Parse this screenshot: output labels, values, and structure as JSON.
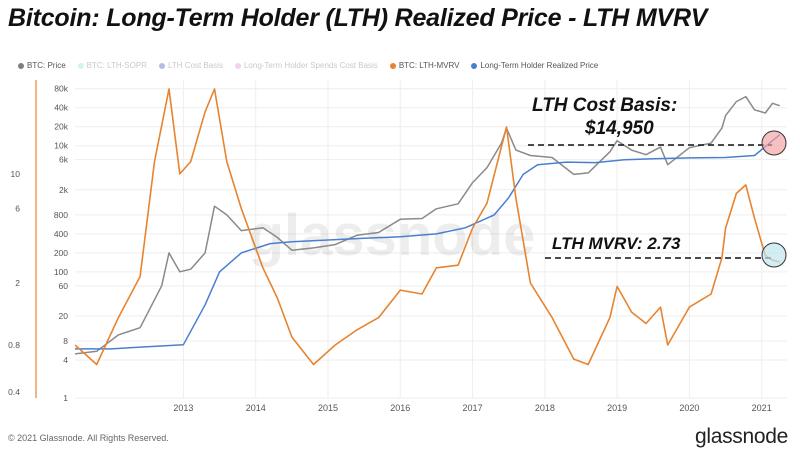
{
  "title": "Bitcoin: Long-Term Holder (LTH) Realized Price - LTH MVRV",
  "legend": [
    {
      "label": "BTC: Price",
      "color": "#7f7f7f",
      "faded": false
    },
    {
      "label": "BTC: LTH-SOPR",
      "color": "#7fdbe0",
      "faded": true
    },
    {
      "label": "LTH Cost Basis",
      "color": "#2f3fb8",
      "faded": true
    },
    {
      "label": "Long-Term Holder Spends Cost Basis",
      "color": "#d57bd8",
      "faded": true
    },
    {
      "label": "BTC: LTH-MVRV",
      "color": "#e8832f",
      "faded": false
    },
    {
      "label": "Long-Term Holder Realized Price",
      "color": "#4a7fd0",
      "faded": false
    }
  ],
  "annotations": {
    "cost_basis_line1": "LTH Cost Basis:",
    "cost_basis_line2": "$14,950",
    "mvrv": "LTH MVRV: 2.73"
  },
  "watermark": "glassnode",
  "footer": {
    "copyright": "© 2021 Glassnode. All Rights Reserved.",
    "logo": "glassnode"
  },
  "chart_data": {
    "type": "line",
    "x_ticks": [
      "2013",
      "2014",
      "2015",
      "2016",
      "2017",
      "2018",
      "2019",
      "2020",
      "2021"
    ],
    "y_right": {
      "label": "",
      "scale": "log",
      "ticks": [
        "1",
        "4",
        "8",
        "20",
        "60",
        "100",
        "200",
        "400",
        "800",
        "2k",
        "6k",
        "10k",
        "20k",
        "40k",
        "80k"
      ]
    },
    "y_left": {
      "label": "",
      "scale": "log",
      "ticks": [
        "0.4",
        "0.8",
        "2",
        "6",
        "10"
      ]
    },
    "grid": true,
    "legend_position": "top",
    "series": [
      {
        "name": "BTC: Price",
        "color": "#8a8a8a",
        "axis": "right",
        "points": [
          [
            2012.0,
            5
          ],
          [
            2012.3,
            5.5
          ],
          [
            2012.6,
            10
          ],
          [
            2012.9,
            13
          ],
          [
            2013.2,
            60
          ],
          [
            2013.3,
            200
          ],
          [
            2013.45,
            100
          ],
          [
            2013.6,
            110
          ],
          [
            2013.8,
            200
          ],
          [
            2013.93,
            1100
          ],
          [
            2014.1,
            800
          ],
          [
            2014.3,
            450
          ],
          [
            2014.6,
            500
          ],
          [
            2014.8,
            350
          ],
          [
            2015.0,
            220
          ],
          [
            2015.3,
            240
          ],
          [
            2015.6,
            270
          ],
          [
            2015.9,
            380
          ],
          [
            2016.2,
            420
          ],
          [
            2016.5,
            680
          ],
          [
            2016.8,
            700
          ],
          [
            2017.0,
            1000
          ],
          [
            2017.3,
            1200
          ],
          [
            2017.5,
            2600
          ],
          [
            2017.7,
            4500
          ],
          [
            2017.9,
            11000
          ],
          [
            2017.97,
            19000
          ],
          [
            2018.1,
            8500
          ],
          [
            2018.3,
            7000
          ],
          [
            2018.6,
            6500
          ],
          [
            2018.9,
            3500
          ],
          [
            2019.1,
            3700
          ],
          [
            2019.4,
            8000
          ],
          [
            2019.5,
            12000
          ],
          [
            2019.7,
            8500
          ],
          [
            2019.9,
            7200
          ],
          [
            2020.1,
            9500
          ],
          [
            2020.2,
            5000
          ],
          [
            2020.5,
            9300
          ],
          [
            2020.8,
            11000
          ],
          [
            2020.95,
            19000
          ],
          [
            2021.0,
            30000
          ],
          [
            2021.15,
            50000
          ],
          [
            2021.28,
            60000
          ],
          [
            2021.4,
            37000
          ],
          [
            2021.55,
            33000
          ],
          [
            2021.65,
            47000
          ],
          [
            2021.75,
            43000
          ]
        ]
      },
      {
        "name": "Long-Term Holder Realized Price",
        "color": "#4a7fd0",
        "axis": "right",
        "points": [
          [
            2012.0,
            6
          ],
          [
            2012.5,
            6
          ],
          [
            2013.0,
            6.5
          ],
          [
            2013.5,
            7
          ],
          [
            2013.8,
            30
          ],
          [
            2014.0,
            100
          ],
          [
            2014.3,
            200
          ],
          [
            2014.7,
            280
          ],
          [
            2015.0,
            300
          ],
          [
            2015.5,
            320
          ],
          [
            2016.0,
            340
          ],
          [
            2016.5,
            360
          ],
          [
            2017.0,
            400
          ],
          [
            2017.4,
            500
          ],
          [
            2017.8,
            800
          ],
          [
            2018.0,
            1500
          ],
          [
            2018.2,
            3500
          ],
          [
            2018.4,
            5000
          ],
          [
            2018.8,
            5500
          ],
          [
            2019.2,
            5400
          ],
          [
            2019.6,
            6000
          ],
          [
            2020.0,
            6200
          ],
          [
            2020.5,
            6400
          ],
          [
            2021.0,
            6500
          ],
          [
            2021.4,
            7000
          ],
          [
            2021.65,
            12000
          ],
          [
            2021.75,
            14950
          ]
        ]
      },
      {
        "name": "BTC: LTH-MVRV",
        "color": "#e8832f",
        "axis": "left",
        "points": [
          [
            2012.0,
            0.8
          ],
          [
            2012.3,
            0.6
          ],
          [
            2012.6,
            1.2
          ],
          [
            2012.9,
            2.2
          ],
          [
            2013.1,
            12
          ],
          [
            2013.3,
            35
          ],
          [
            2013.45,
            10
          ],
          [
            2013.6,
            12
          ],
          [
            2013.8,
            25
          ],
          [
            2013.93,
            35
          ],
          [
            2014.1,
            12
          ],
          [
            2014.3,
            6
          ],
          [
            2014.6,
            2.5
          ],
          [
            2014.8,
            1.6
          ],
          [
            2015.0,
            0.9
          ],
          [
            2015.3,
            0.6
          ],
          [
            2015.6,
            0.8
          ],
          [
            2015.9,
            1.0
          ],
          [
            2016.2,
            1.2
          ],
          [
            2016.5,
            1.8
          ],
          [
            2016.8,
            1.7
          ],
          [
            2017.0,
            2.5
          ],
          [
            2017.3,
            2.6
          ],
          [
            2017.5,
            4.5
          ],
          [
            2017.7,
            6.5
          ],
          [
            2017.97,
            20
          ],
          [
            2018.1,
            7
          ],
          [
            2018.3,
            2.0
          ],
          [
            2018.6,
            1.2
          ],
          [
            2018.9,
            0.65
          ],
          [
            2019.1,
            0.6
          ],
          [
            2019.4,
            1.2
          ],
          [
            2019.5,
            1.9
          ],
          [
            2019.7,
            1.3
          ],
          [
            2019.9,
            1.1
          ],
          [
            2020.1,
            1.4
          ],
          [
            2020.2,
            0.8
          ],
          [
            2020.5,
            1.4
          ],
          [
            2020.8,
            1.7
          ],
          [
            2020.95,
            2.9
          ],
          [
            2021.0,
            4.5
          ],
          [
            2021.15,
            7.5
          ],
          [
            2021.28,
            8.5
          ],
          [
            2021.4,
            5.2
          ],
          [
            2021.55,
            3.0
          ],
          [
            2021.65,
            2.8
          ],
          [
            2021.75,
            2.73
          ]
        ]
      }
    ]
  }
}
